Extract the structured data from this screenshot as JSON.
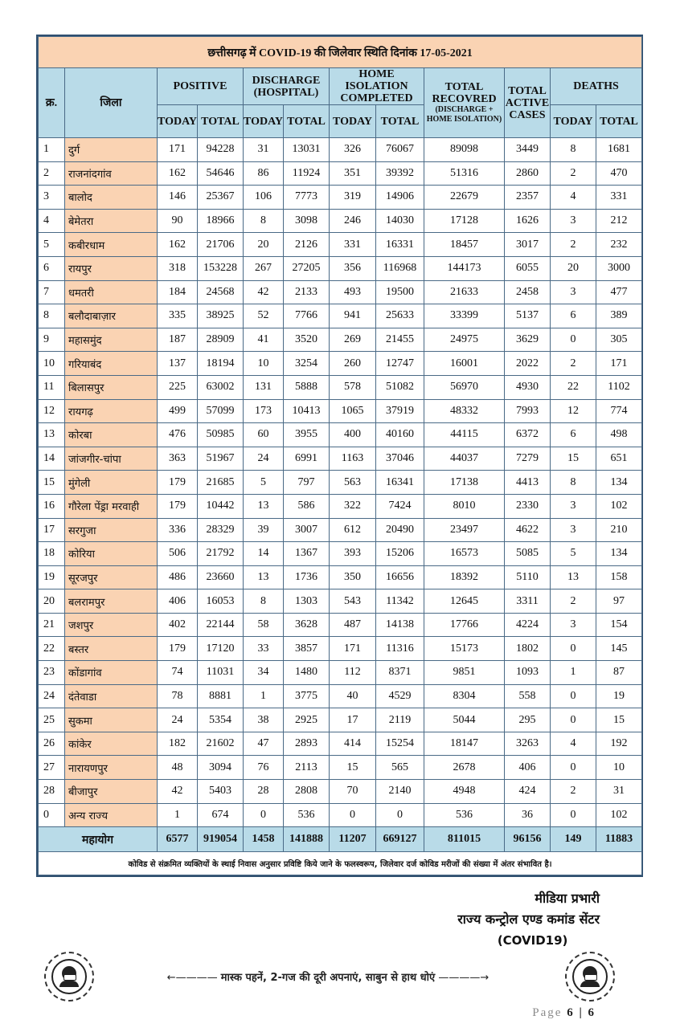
{
  "title": "छत्तीसगढ़ में COVID-19 की जिलेवार स्थिति दिनांक 17-05-2021",
  "headers": {
    "sno": "क्र.",
    "district": "जिला",
    "positive": "POSITIVE",
    "discharge": "DISCHARGE (HOSPITAL)",
    "home_isolation": "HOME ISOLATION COMPLETED",
    "total_recovered": "TOTAL RECOVRED",
    "total_recovered_note": "(DISCHARGE + HOME ISOLATION)",
    "total_active": "TOTAL ACTIVE CASES",
    "deaths": "DEATHS",
    "today": "TODAY",
    "total": "TOTAL"
  },
  "rows": [
    {
      "sno": "1",
      "district": "दुर्ग",
      "pos_today": "171",
      "pos_total": "94228",
      "dis_today": "31",
      "dis_total": "13031",
      "hi_today": "326",
      "hi_total": "76067",
      "recovered": "89098",
      "active": "3449",
      "death_today": "8",
      "death_total": "1681"
    },
    {
      "sno": "2",
      "district": "राजनांदगांव",
      "pos_today": "162",
      "pos_total": "54646",
      "dis_today": "86",
      "dis_total": "11924",
      "hi_today": "351",
      "hi_total": "39392",
      "recovered": "51316",
      "active": "2860",
      "death_today": "2",
      "death_total": "470"
    },
    {
      "sno": "3",
      "district": "बालोद",
      "pos_today": "146",
      "pos_total": "25367",
      "dis_today": "106",
      "dis_total": "7773",
      "hi_today": "319",
      "hi_total": "14906",
      "recovered": "22679",
      "active": "2357",
      "death_today": "4",
      "death_total": "331"
    },
    {
      "sno": "4",
      "district": "बेमेतरा",
      "pos_today": "90",
      "pos_total": "18966",
      "dis_today": "8",
      "dis_total": "3098",
      "hi_today": "246",
      "hi_total": "14030",
      "recovered": "17128",
      "active": "1626",
      "death_today": "3",
      "death_total": "212"
    },
    {
      "sno": "5",
      "district": "कबीरधाम",
      "pos_today": "162",
      "pos_total": "21706",
      "dis_today": "20",
      "dis_total": "2126",
      "hi_today": "331",
      "hi_total": "16331",
      "recovered": "18457",
      "active": "3017",
      "death_today": "2",
      "death_total": "232"
    },
    {
      "sno": "6",
      "district": "रायपुर",
      "pos_today": "318",
      "pos_total": "153228",
      "dis_today": "267",
      "dis_total": "27205",
      "hi_today": "356",
      "hi_total": "116968",
      "recovered": "144173",
      "active": "6055",
      "death_today": "20",
      "death_total": "3000"
    },
    {
      "sno": "7",
      "district": "धमतरी",
      "pos_today": "184",
      "pos_total": "24568",
      "dis_today": "42",
      "dis_total": "2133",
      "hi_today": "493",
      "hi_total": "19500",
      "recovered": "21633",
      "active": "2458",
      "death_today": "3",
      "death_total": "477"
    },
    {
      "sno": "8",
      "district": "बलौदाबाज़ार",
      "pos_today": "335",
      "pos_total": "38925",
      "dis_today": "52",
      "dis_total": "7766",
      "hi_today": "941",
      "hi_total": "25633",
      "recovered": "33399",
      "active": "5137",
      "death_today": "6",
      "death_total": "389"
    },
    {
      "sno": "9",
      "district": "महासमुंद",
      "pos_today": "187",
      "pos_total": "28909",
      "dis_today": "41",
      "dis_total": "3520",
      "hi_today": "269",
      "hi_total": "21455",
      "recovered": "24975",
      "active": "3629",
      "death_today": "0",
      "death_total": "305"
    },
    {
      "sno": "10",
      "district": "गरियाबंद",
      "pos_today": "137",
      "pos_total": "18194",
      "dis_today": "10",
      "dis_total": "3254",
      "hi_today": "260",
      "hi_total": "12747",
      "recovered": "16001",
      "active": "2022",
      "death_today": "2",
      "death_total": "171"
    },
    {
      "sno": "11",
      "district": "बिलासपुर",
      "pos_today": "225",
      "pos_total": "63002",
      "dis_today": "131",
      "dis_total": "5888",
      "hi_today": "578",
      "hi_total": "51082",
      "recovered": "56970",
      "active": "4930",
      "death_today": "22",
      "death_total": "1102"
    },
    {
      "sno": "12",
      "district": "रायगढ़",
      "pos_today": "499",
      "pos_total": "57099",
      "dis_today": "173",
      "dis_total": "10413",
      "hi_today": "1065",
      "hi_total": "37919",
      "recovered": "48332",
      "active": "7993",
      "death_today": "12",
      "death_total": "774"
    },
    {
      "sno": "13",
      "district": "कोरबा",
      "pos_today": "476",
      "pos_total": "50985",
      "dis_today": "60",
      "dis_total": "3955",
      "hi_today": "400",
      "hi_total": "40160",
      "recovered": "44115",
      "active": "6372",
      "death_today": "6",
      "death_total": "498"
    },
    {
      "sno": "14",
      "district": "जांजगीर-चांपा",
      "pos_today": "363",
      "pos_total": "51967",
      "dis_today": "24",
      "dis_total": "6991",
      "hi_today": "1163",
      "hi_total": "37046",
      "recovered": "44037",
      "active": "7279",
      "death_today": "15",
      "death_total": "651"
    },
    {
      "sno": "15",
      "district": "मुंगेली",
      "pos_today": "179",
      "pos_total": "21685",
      "dis_today": "5",
      "dis_total": "797",
      "hi_today": "563",
      "hi_total": "16341",
      "recovered": "17138",
      "active": "4413",
      "death_today": "8",
      "death_total": "134"
    },
    {
      "sno": "16",
      "district": "गौरेला पेंड्रा मरवाही",
      "pos_today": "179",
      "pos_total": "10442",
      "dis_today": "13",
      "dis_total": "586",
      "hi_today": "322",
      "hi_total": "7424",
      "recovered": "8010",
      "active": "2330",
      "death_today": "3",
      "death_total": "102"
    },
    {
      "sno": "17",
      "district": "सरगुजा",
      "pos_today": "336",
      "pos_total": "28329",
      "dis_today": "39",
      "dis_total": "3007",
      "hi_today": "612",
      "hi_total": "20490",
      "recovered": "23497",
      "active": "4622",
      "death_today": "3",
      "death_total": "210"
    },
    {
      "sno": "18",
      "district": "कोरिया",
      "pos_today": "506",
      "pos_total": "21792",
      "dis_today": "14",
      "dis_total": "1367",
      "hi_today": "393",
      "hi_total": "15206",
      "recovered": "16573",
      "active": "5085",
      "death_today": "5",
      "death_total": "134"
    },
    {
      "sno": "19",
      "district": "सूरजपुर",
      "pos_today": "486",
      "pos_total": "23660",
      "dis_today": "13",
      "dis_total": "1736",
      "hi_today": "350",
      "hi_total": "16656",
      "recovered": "18392",
      "active": "5110",
      "death_today": "13",
      "death_total": "158"
    },
    {
      "sno": "20",
      "district": "बलरामपुर",
      "pos_today": "406",
      "pos_total": "16053",
      "dis_today": "8",
      "dis_total": "1303",
      "hi_today": "543",
      "hi_total": "11342",
      "recovered": "12645",
      "active": "3311",
      "death_today": "2",
      "death_total": "97"
    },
    {
      "sno": "21",
      "district": "जशपुर",
      "pos_today": "402",
      "pos_total": "22144",
      "dis_today": "58",
      "dis_total": "3628",
      "hi_today": "487",
      "hi_total": "14138",
      "recovered": "17766",
      "active": "4224",
      "death_today": "3",
      "death_total": "154"
    },
    {
      "sno": "22",
      "district": "बस्तर",
      "pos_today": "179",
      "pos_total": "17120",
      "dis_today": "33",
      "dis_total": "3857",
      "hi_today": "171",
      "hi_total": "11316",
      "recovered": "15173",
      "active": "1802",
      "death_today": "0",
      "death_total": "145"
    },
    {
      "sno": "23",
      "district": "कोंडागांव",
      "pos_today": "74",
      "pos_total": "11031",
      "dis_today": "34",
      "dis_total": "1480",
      "hi_today": "112",
      "hi_total": "8371",
      "recovered": "9851",
      "active": "1093",
      "death_today": "1",
      "death_total": "87"
    },
    {
      "sno": "24",
      "district": "दंतेवाडा",
      "pos_today": "78",
      "pos_total": "8881",
      "dis_today": "1",
      "dis_total": "3775",
      "hi_today": "40",
      "hi_total": "4529",
      "recovered": "8304",
      "active": "558",
      "death_today": "0",
      "death_total": "19"
    },
    {
      "sno": "25",
      "district": "सुकमा",
      "pos_today": "24",
      "pos_total": "5354",
      "dis_today": "38",
      "dis_total": "2925",
      "hi_today": "17",
      "hi_total": "2119",
      "recovered": "5044",
      "active": "295",
      "death_today": "0",
      "death_total": "15"
    },
    {
      "sno": "26",
      "district": "कांकेर",
      "pos_today": "182",
      "pos_total": "21602",
      "dis_today": "47",
      "dis_total": "2893",
      "hi_today": "414",
      "hi_total": "15254",
      "recovered": "18147",
      "active": "3263",
      "death_today": "4",
      "death_total": "192"
    },
    {
      "sno": "27",
      "district": "नारायणपुर",
      "pos_today": "48",
      "pos_total": "3094",
      "dis_today": "76",
      "dis_total": "2113",
      "hi_today": "15",
      "hi_total": "565",
      "recovered": "2678",
      "active": "406",
      "death_today": "0",
      "death_total": "10"
    },
    {
      "sno": "28",
      "district": "बीजापुर",
      "pos_today": "42",
      "pos_total": "5403",
      "dis_today": "28",
      "dis_total": "2808",
      "hi_today": "70",
      "hi_total": "2140",
      "recovered": "4948",
      "active": "424",
      "death_today": "2",
      "death_total": "31"
    },
    {
      "sno": "0",
      "district": "अन्य राज्य",
      "pos_today": "1",
      "pos_total": "674",
      "dis_today": "0",
      "dis_total": "536",
      "hi_today": "0",
      "hi_total": "0",
      "recovered": "536",
      "active": "36",
      "death_today": "0",
      "death_total": "102"
    }
  ],
  "grand_total": {
    "label": "महायोग",
    "pos_today": "6577",
    "pos_total": "919054",
    "dis_today": "1458",
    "dis_total": "141888",
    "hi_today": "11207",
    "hi_total": "669127",
    "recovered": "811015",
    "active": "96156",
    "death_today": "149",
    "death_total": "11883"
  },
  "note": "कोविड से संक्रमित व्यक्तियों के स्थाई निवास अनुसार प्रविष्टि किये जाने के फलस्वरूप, जिलेवार दर्ज कोविड मरीजों की संख्या में अंतर संभावित है।",
  "signature": {
    "line1": "मीडिया प्रभारी",
    "line2": "राज्य कन्ट्रोल एण्ड कमांड सेंटर",
    "line3": "(COVID19)"
  },
  "footer": {
    "slogan": "मास्क पहनें, 2-गज की दूरी अपनाएं, साबुन से हाथ धोएं",
    "left_icon": "masked-woman-icon",
    "right_icon": "masked-man-icon"
  },
  "page": {
    "prefix": "Page",
    "number": "6 | 6"
  },
  "colors": {
    "district_bg": "#fad3b3",
    "header_bg": "#b9dbe8",
    "border": "#2f4f6f"
  }
}
